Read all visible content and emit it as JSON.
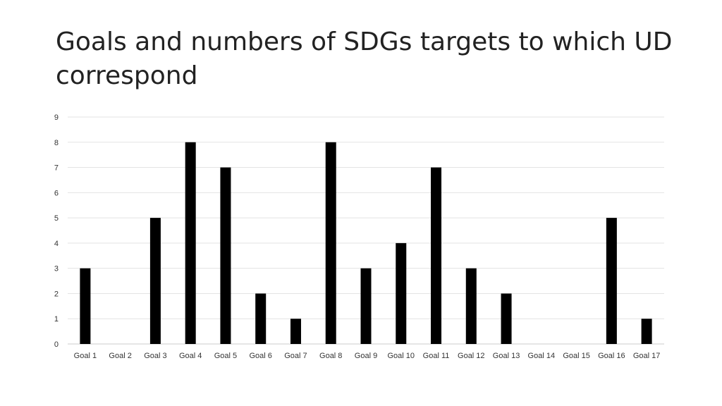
{
  "title": "Goals and numbers of SDGs targets to which UD correspond",
  "chart_data": {
    "type": "bar",
    "title": "Goals and numbers of SDGs targets to which UD correspond",
    "xlabel": "",
    "ylabel": "",
    "categories": [
      "Goal 1",
      "Goal 2",
      "Goal 3",
      "Goal 4",
      "Goal 5",
      "Goal 6",
      "Goal 7",
      "Goal 8",
      "Goal 9",
      "Goal 10",
      "Goal 11",
      "Goal 12",
      "Goal 13",
      "Goal 14",
      "Goal 15",
      "Goal 16",
      "Goal 17"
    ],
    "values": [
      3,
      0,
      5,
      8,
      7,
      2,
      1,
      8,
      3,
      4,
      7,
      3,
      2,
      0,
      0,
      5,
      1
    ],
    "ylim": [
      0,
      9
    ],
    "yticks": [
      0,
      1,
      2,
      3,
      4,
      5,
      6,
      7,
      8,
      9
    ],
    "grid": true,
    "legend": "none",
    "bar_color": "#000000"
  }
}
